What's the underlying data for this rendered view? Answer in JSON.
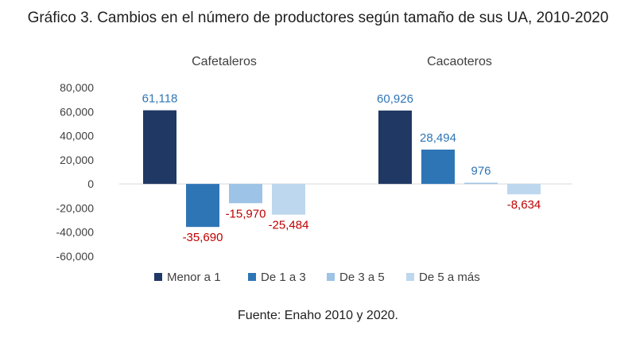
{
  "title": "Gráfico 3. Cambios en el número de productores según tamaño de sus UA, 2010-2020",
  "source": "Fuente: Enaho 2010 y 2020.",
  "chart_data": {
    "type": "bar",
    "categories": [
      "Cafetaleros",
      "Cacaoteros"
    ],
    "series": [
      {
        "name": "Menor a 1",
        "values": [
          61118,
          60926
        ],
        "labels": [
          "61,118",
          "60,926"
        ],
        "color": "#203864"
      },
      {
        "name": "De 1 a 3",
        "values": [
          -35690,
          28494
        ],
        "labels": [
          "-35,690",
          "28,494"
        ],
        "color": "#2e75b6"
      },
      {
        "name": "De 3 a 5",
        "values": [
          -15970,
          976
        ],
        "labels": [
          "-15,970",
          "976"
        ],
        "color": "#9dc3e6"
      },
      {
        "name": "De 5 a más",
        "values": [
          -25484,
          -8634
        ],
        "labels": [
          "-25,484",
          "-8,634"
        ],
        "color": "#bdd7ee"
      }
    ],
    "ylim": [
      -60000,
      80000
    ],
    "yticks": [
      80000,
      60000,
      40000,
      20000,
      0,
      -20000,
      -40000,
      -60000
    ],
    "ytick_labels": [
      "80,000",
      "60,000",
      "40,000",
      "20,000",
      "0",
      "-20,000",
      "-40,000",
      "-60,000"
    ],
    "positive_label_color": "#2e75b6",
    "negative_label_color": "#c00000",
    "grid": false,
    "legend_position": "bottom"
  }
}
